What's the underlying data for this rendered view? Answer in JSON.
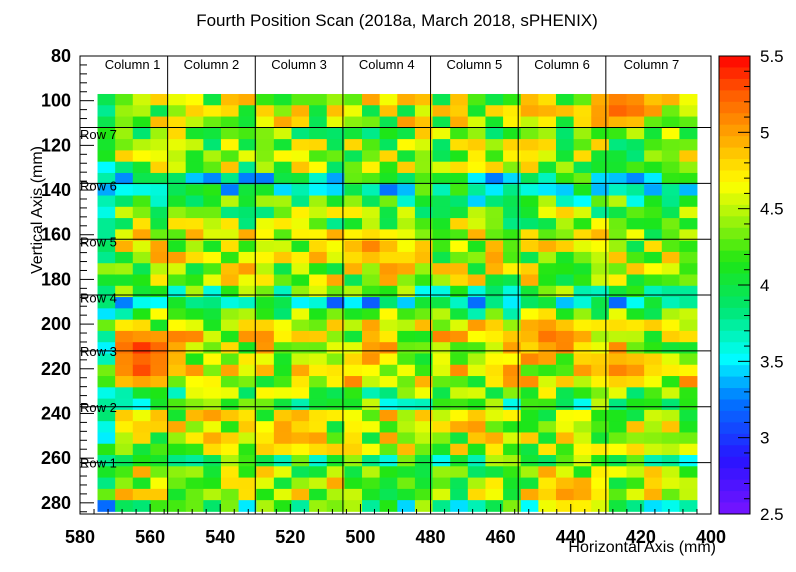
{
  "chart_data": {
    "type": "heatmap",
    "title": "Fourth Position Scan (2018a, March 2018, sPHENIX)",
    "xlabel": "Horizontal Axis (mm)",
    "ylabel": "Vertical Axis (mm)",
    "xlim": [
      580,
      400
    ],
    "ylim": [
      80,
      285
    ],
    "x_ticks": [
      "580",
      "560",
      "540",
      "520",
      "500",
      "480",
      "460",
      "440",
      "420",
      "400"
    ],
    "y_ticks": [
      "80",
      "100",
      "120",
      "140",
      "160",
      "180",
      "200",
      "220",
      "240",
      "260",
      "280"
    ],
    "data_extent": {
      "x": [
        575,
        404
      ],
      "y": [
        97,
        284
      ]
    },
    "grid": {
      "cols": 34,
      "rows": 37,
      "x_start": 575,
      "x_step": -5.03,
      "y_start": 97,
      "y_step": 5.05
    },
    "columns": [
      {
        "label": "Column 1",
        "x_from": 575,
        "x_to": 555
      },
      {
        "label": "Column 2",
        "x_from": 555,
        "x_to": 530
      },
      {
        "label": "Column 3",
        "x_from": 530,
        "x_to": 505
      },
      {
        "label": "Column 4",
        "x_from": 505,
        "x_to": 480
      },
      {
        "label": "Column 5",
        "x_from": 480,
        "x_to": 455
      },
      {
        "label": "Column 6",
        "x_from": 455,
        "x_to": 430
      },
      {
        "label": "Column 7",
        "x_from": 430,
        "x_to": 404
      }
    ],
    "rows": [
      {
        "label": "Row 7",
        "y": 115
      },
      {
        "label": "Row 6",
        "y": 138
      },
      {
        "label": "Row 5",
        "y": 163
      },
      {
        "label": "Row 4",
        "y": 188
      },
      {
        "label": "Row 3",
        "y": 212
      },
      {
        "label": "Row 2",
        "y": 237
      },
      {
        "label": "Row 1",
        "y": 262
      }
    ],
    "row_lines_y": [
      80,
      112,
      137,
      162,
      187,
      212,
      237,
      262,
      285
    ],
    "colorbar": {
      "min": 2.5,
      "max": 5.5,
      "ticks": [
        "2.5",
        "3",
        "3.5",
        "4",
        "4.5",
        "5",
        "5.5"
      ]
    },
    "band_pattern": [
      {
        "y_from": 97,
        "y_to": 112,
        "base": 4.75
      },
      {
        "y_from": 112,
        "y_to": 134,
        "base": 4.6
      },
      {
        "y_from": 134,
        "y_to": 141,
        "base": 4.05
      },
      {
        "y_from": 141,
        "y_to": 147,
        "base": 4.25
      },
      {
        "y_from": 147,
        "y_to": 160,
        "base": 4.55
      },
      {
        "y_from": 160,
        "y_to": 184,
        "base": 4.75
      },
      {
        "y_from": 184,
        "y_to": 188,
        "base": 4.3
      },
      {
        "y_from": 188,
        "y_to": 193,
        "base": 3.95
      },
      {
        "y_from": 193,
        "y_to": 200,
        "base": 4.5
      },
      {
        "y_from": 200,
        "y_to": 229,
        "base": 4.85
      },
      {
        "y_from": 229,
        "y_to": 233,
        "base": 4.45
      },
      {
        "y_from": 233,
        "y_to": 240,
        "base": 4.25
      },
      {
        "y_from": 240,
        "y_to": 257,
        "base": 4.75
      },
      {
        "y_from": 257,
        "y_to": 262,
        "base": 4.35
      },
      {
        "y_from": 262,
        "y_to": 279,
        "base": 4.7
      },
      {
        "y_from": 279,
        "y_to": 285,
        "base": 4.2
      }
    ],
    "hotspots": [
      {
        "x": 562,
        "y": 212,
        "peak": 5.45
      },
      {
        "x": 562,
        "y": 220,
        "peak": 5.35
      },
      {
        "x": 445,
        "y": 206,
        "peak": 5.25
      },
      {
        "x": 425,
        "y": 220,
        "peak": 5.2
      },
      {
        "x": 425,
        "y": 103,
        "peak": 5.35
      },
      {
        "x": 497,
        "y": 166,
        "peak": 5.15
      },
      {
        "x": 520,
        "y": 250,
        "peak": 5.1
      },
      {
        "x": 440,
        "y": 275,
        "peak": 5.15
      }
    ]
  }
}
